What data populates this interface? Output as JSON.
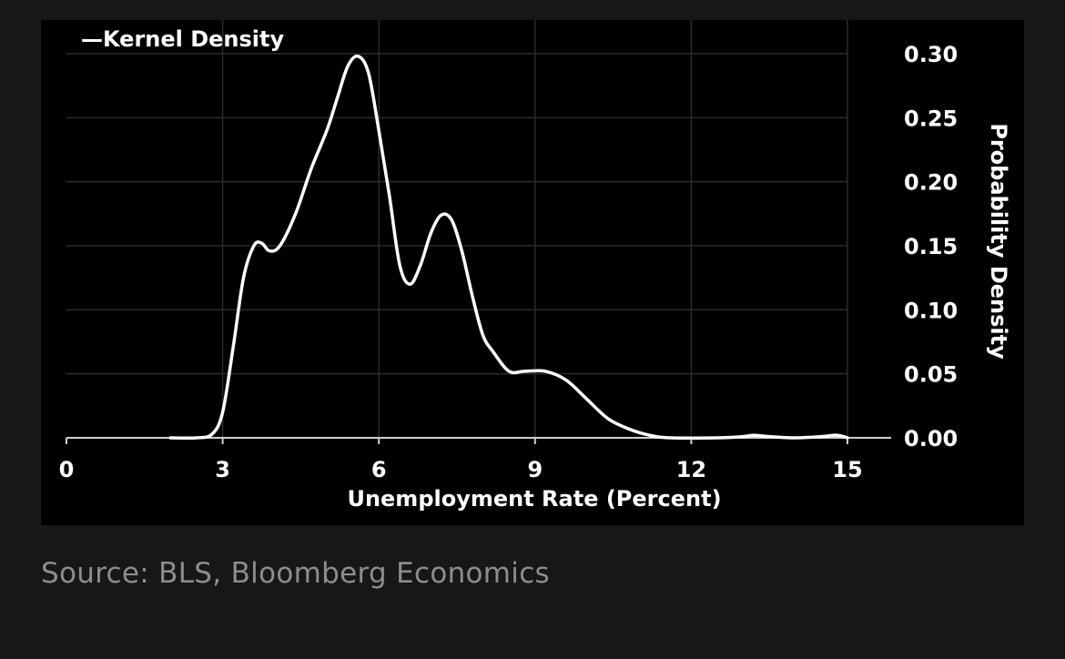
{
  "chart_data": {
    "type": "line",
    "title": "",
    "xlabel": "Unemployment Rate (Percent)",
    "ylabel": "Probability Density",
    "xlim": [
      0,
      15
    ],
    "ylim": [
      0,
      0.3
    ],
    "x_ticks": [
      "0",
      "3",
      "6",
      "9",
      "12",
      "15"
    ],
    "y_ticks": [
      "0.00",
      "0.05",
      "0.10",
      "0.15",
      "0.20",
      "0.25",
      "0.30"
    ],
    "y_axis_side": "right",
    "grid": true,
    "legend": {
      "placement": "top-left",
      "label": "—Kernel Density"
    },
    "series": [
      {
        "name": "Kernel Density",
        "color": "#ffffff",
        "points": [
          [
            2.0,
            0.0
          ],
          [
            2.5,
            0.0
          ],
          [
            2.8,
            0.003
          ],
          [
            3.0,
            0.02
          ],
          [
            3.2,
            0.07
          ],
          [
            3.4,
            0.125
          ],
          [
            3.6,
            0.15
          ],
          [
            3.75,
            0.152
          ],
          [
            3.9,
            0.146
          ],
          [
            4.1,
            0.15
          ],
          [
            4.4,
            0.175
          ],
          [
            4.7,
            0.21
          ],
          [
            5.0,
            0.24
          ],
          [
            5.2,
            0.265
          ],
          [
            5.4,
            0.29
          ],
          [
            5.6,
            0.298
          ],
          [
            5.8,
            0.285
          ],
          [
            6.0,
            0.24
          ],
          [
            6.2,
            0.19
          ],
          [
            6.4,
            0.135
          ],
          [
            6.6,
            0.12
          ],
          [
            6.8,
            0.135
          ],
          [
            7.0,
            0.16
          ],
          [
            7.2,
            0.174
          ],
          [
            7.4,
            0.17
          ],
          [
            7.6,
            0.145
          ],
          [
            7.8,
            0.11
          ],
          [
            8.0,
            0.08
          ],
          [
            8.2,
            0.067
          ],
          [
            8.5,
            0.052
          ],
          [
            8.8,
            0.052
          ],
          [
            9.2,
            0.052
          ],
          [
            9.6,
            0.045
          ],
          [
            10.0,
            0.03
          ],
          [
            10.4,
            0.015
          ],
          [
            10.8,
            0.007
          ],
          [
            11.2,
            0.002
          ],
          [
            11.6,
            0.0
          ],
          [
            12.5,
            0.0
          ],
          [
            13.0,
            0.001
          ],
          [
            13.2,
            0.002
          ],
          [
            13.5,
            0.001
          ],
          [
            14.0,
            0.0
          ],
          [
            14.5,
            0.001
          ],
          [
            14.8,
            0.002
          ],
          [
            15.0,
            0.0
          ]
        ]
      }
    ]
  },
  "source": "Source: BLS, Bloomberg Economics"
}
